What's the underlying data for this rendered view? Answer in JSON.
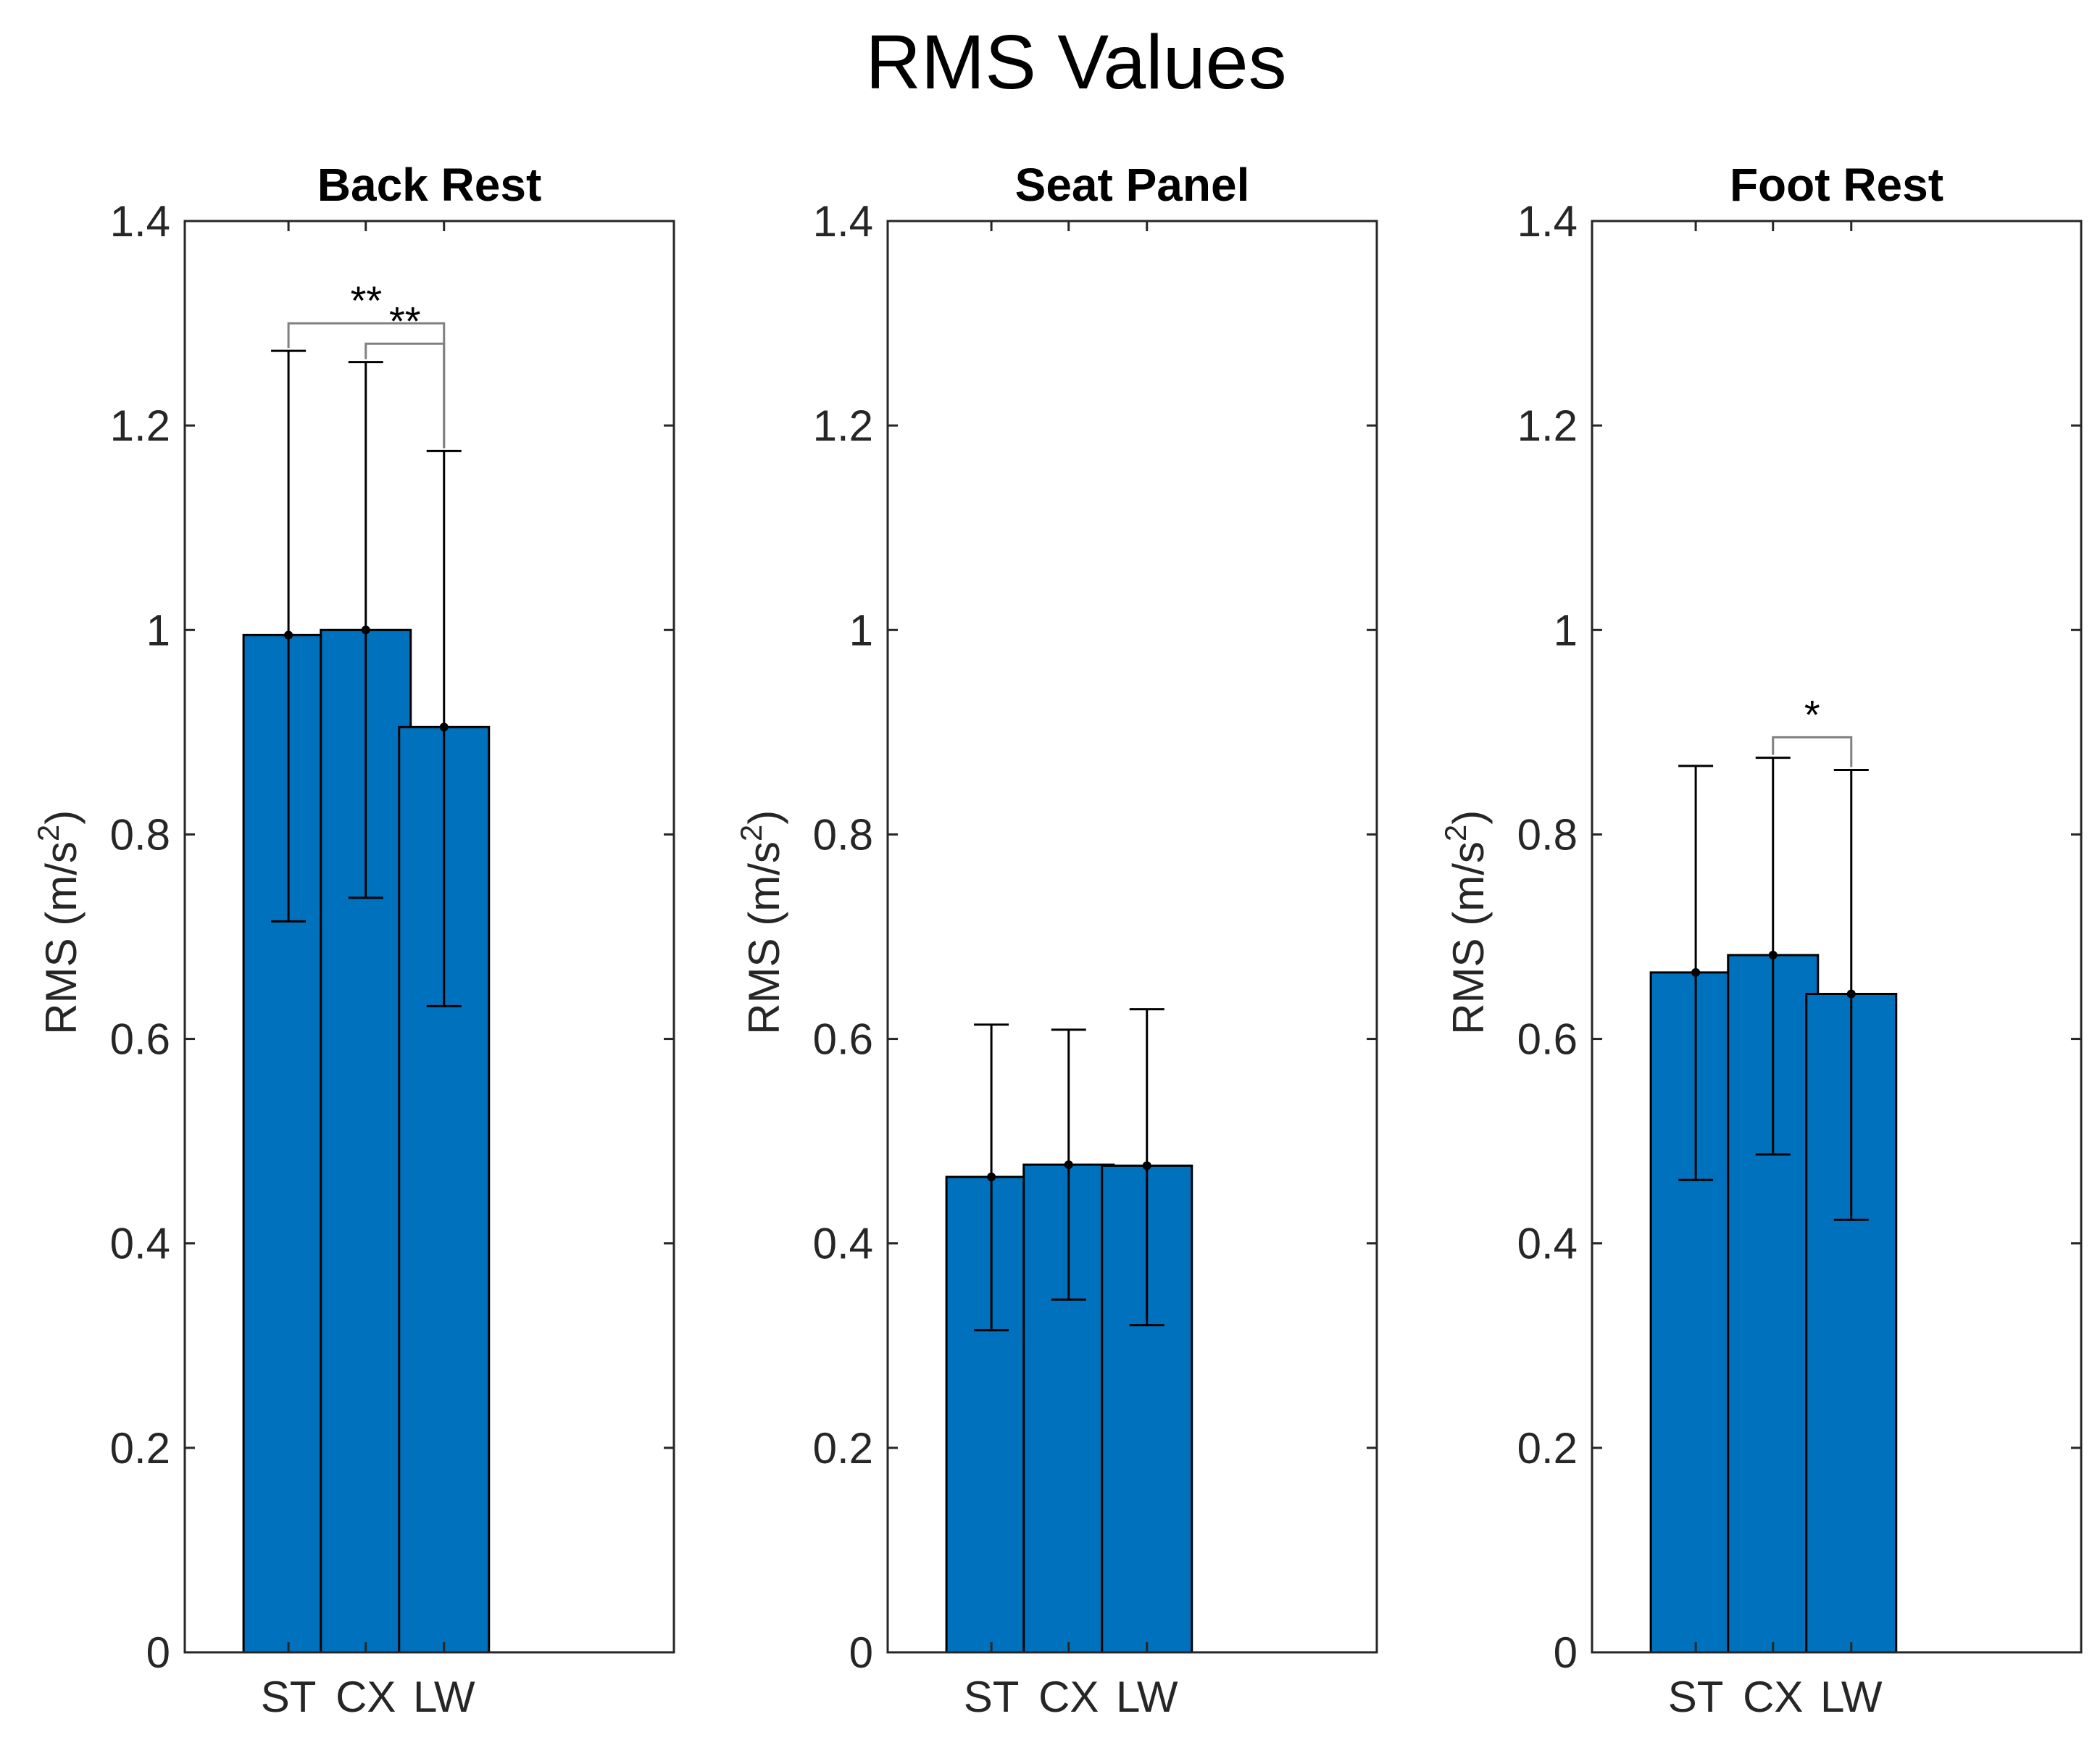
{
  "figure_title": "RMS Values",
  "colors": {
    "bar": "#0072BD",
    "bar_edge": "#000000",
    "axis": "#262626",
    "errorbar": "#000000",
    "sig_bracket": "#808080"
  },
  "chart_data": [
    {
      "type": "bar",
      "title": "Back Rest",
      "xlabel": "",
      "ylabel": "RMS (m/s^2)",
      "ylabel_base": "RMS (m/s",
      "ylabel_exp": "2",
      "ylabel_close": ")",
      "ylim": [
        0,
        1.4
      ],
      "yticks": [
        "0",
        "0.2",
        "0.4",
        "0.6",
        "0.8",
        "1",
        "1.2",
        "1.4"
      ],
      "categories": [
        "ST",
        "CX",
        "LW"
      ],
      "values": [
        0.995,
        1.0,
        0.905
      ],
      "err_low": [
        0.715,
        0.738,
        0.632
      ],
      "err_high": [
        1.273,
        1.262,
        1.175
      ],
      "significance": [
        {
          "from": 0,
          "to": 2,
          "label": "**",
          "level": 1.3
        },
        {
          "from": 1,
          "to": 2,
          "label": "**",
          "level": 1.28
        }
      ]
    },
    {
      "type": "bar",
      "title": "Seat Panel",
      "xlabel": "",
      "ylabel": "RMS (m/s^2)",
      "ylabel_base": "RMS (m/s",
      "ylabel_exp": "2",
      "ylabel_close": ")",
      "ylim": [
        0,
        1.4
      ],
      "yticks": [
        "0",
        "0.2",
        "0.4",
        "0.6",
        "0.8",
        "1",
        "1.2",
        "1.4"
      ],
      "categories": [
        "ST",
        "CX",
        "LW"
      ],
      "values": [
        0.465,
        0.477,
        0.476
      ],
      "err_low": [
        0.315,
        0.345,
        0.32
      ],
      "err_high": [
        0.614,
        0.609,
        0.629
      ],
      "significance": []
    },
    {
      "type": "bar",
      "title": "Foot Rest",
      "xlabel": "",
      "ylabel": "RMS (m/s^2)",
      "ylabel_base": "RMS (m/s",
      "ylabel_exp": "2",
      "ylabel_close": ")",
      "ylim": [
        0,
        1.4
      ],
      "yticks": [
        "0",
        "0.2",
        "0.4",
        "0.6",
        "0.8",
        "1",
        "1.2",
        "1.4"
      ],
      "categories": [
        "ST",
        "CX",
        "LW"
      ],
      "values": [
        0.665,
        0.682,
        0.644
      ],
      "err_low": [
        0.462,
        0.487,
        0.423
      ],
      "err_high": [
        0.867,
        0.875,
        0.863
      ],
      "significance": [
        {
          "from": 1,
          "to": 2,
          "label": "*",
          "level": 0.895
        }
      ]
    }
  ]
}
